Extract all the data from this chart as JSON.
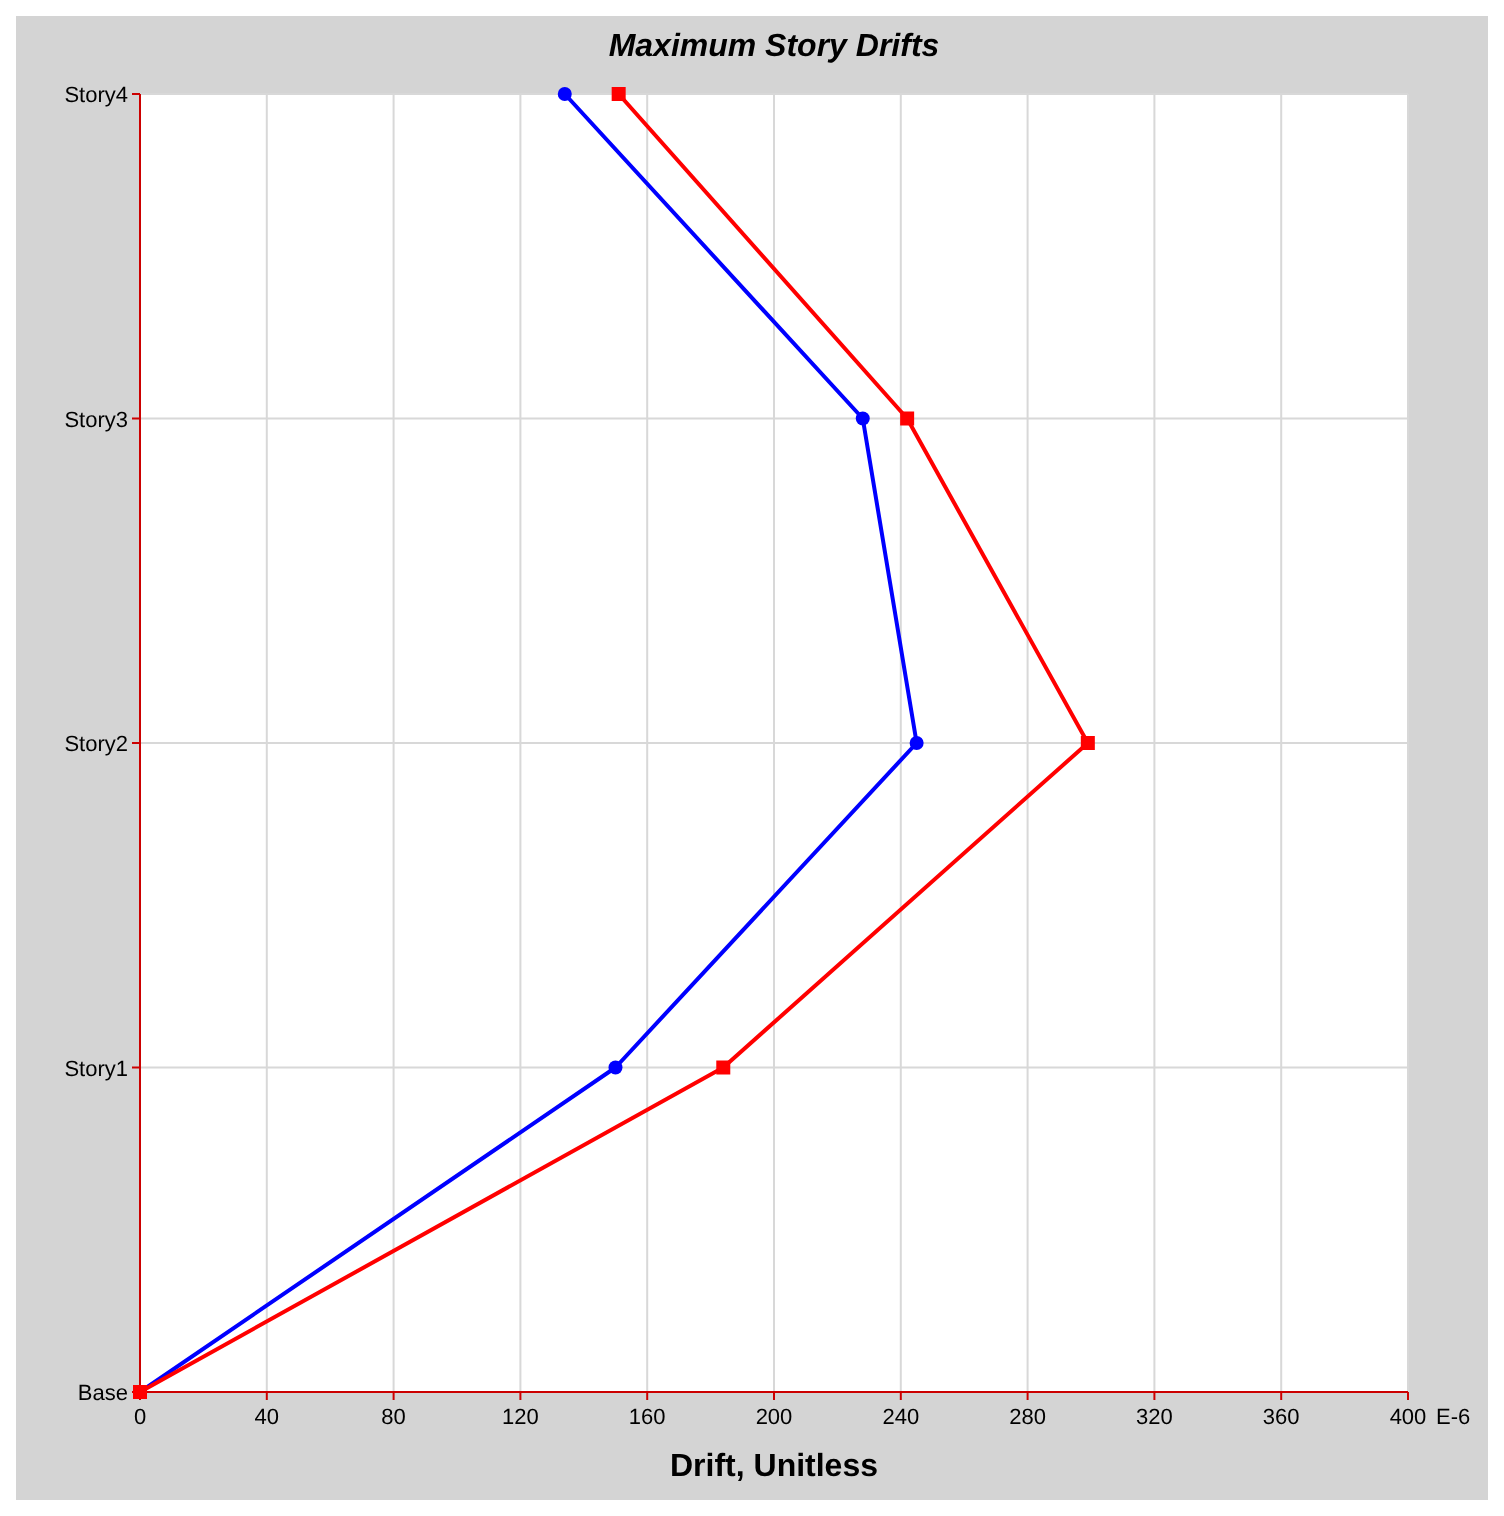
{
  "chart_data": {
    "type": "line",
    "orientation": "horizontal",
    "title": "Maximum Story Drifts",
    "xlabel": "Drift, Unitless",
    "categories": [
      "Story4",
      "Story3",
      "Story2",
      "Story1",
      "Base"
    ],
    "series": [
      {
        "color": "#0000ff",
        "marker": "circle",
        "values": [
          134,
          228,
          245,
          150,
          0
        ]
      },
      {
        "color": "#ff0000",
        "marker": "square",
        "values": [
          151,
          242,
          299,
          184,
          0
        ]
      }
    ],
    "xlim": [
      0,
      400
    ],
    "xticks": [
      0,
      40,
      80,
      120,
      160,
      200,
      240,
      280,
      320,
      360,
      400
    ],
    "annotations": [
      "E-6"
    ],
    "grid": true,
    "line_style": "solid"
  }
}
